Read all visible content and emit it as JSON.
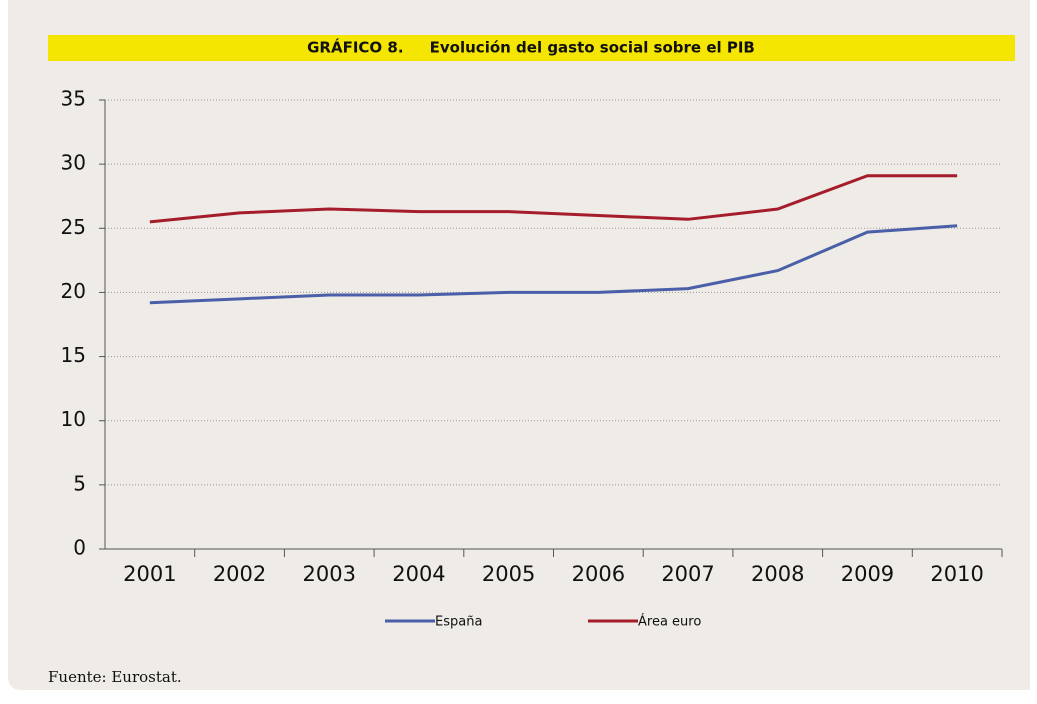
{
  "chart_data": {
    "type": "line",
    "title": "GRÁFICO 8.     Evolución del gasto social sobre el PIB",
    "categories": [
      "2001",
      "2002",
      "2003",
      "2004",
      "2005",
      "2006",
      "2007",
      "2008",
      "2009",
      "2010"
    ],
    "series": [
      {
        "name": "España",
        "color": "#4a5fa8",
        "values": [
          19.2,
          19.5,
          19.8,
          19.8,
          20.0,
          20.0,
          20.3,
          21.7,
          24.7,
          25.2
        ]
      },
      {
        "name": "Área euro",
        "color": "#a51c2a",
        "values": [
          25.5,
          26.2,
          26.5,
          26.3,
          26.3,
          26.0,
          25.7,
          26.5,
          29.1,
          29.1
        ]
      }
    ],
    "ylim": [
      0,
      35
    ],
    "yticks": [
      0,
      5,
      10,
      15,
      20,
      25,
      30,
      35
    ],
    "grid": true,
    "source": "Fuente: Eurostat."
  }
}
